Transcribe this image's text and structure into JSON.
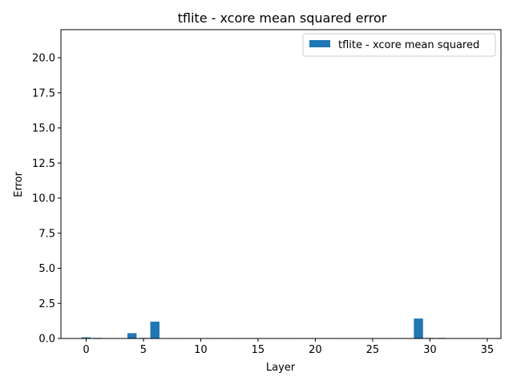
{
  "chart_data": {
    "type": "bar",
    "title": "tflite - xcore mean squared error",
    "xlabel": "Layer",
    "ylabel": "Error",
    "xlim": [
      -2.2,
      36.2
    ],
    "ylim": [
      0,
      22
    ],
    "xticks": [
      0,
      5,
      10,
      15,
      20,
      25,
      30,
      35
    ],
    "yticks": [
      0.0,
      2.5,
      5.0,
      7.5,
      10.0,
      12.5,
      15.0,
      17.5,
      20.0
    ],
    "grid": false,
    "legend_position": "top-right",
    "series": [
      {
        "name": "tflite - xcore mean squared",
        "color": "#1f77b4",
        "x": [
          0,
          1,
          4,
          5,
          6,
          9,
          10,
          12,
          14,
          15,
          19,
          20,
          21,
          25,
          27,
          28,
          29,
          30,
          31
        ],
        "values": [
          0.08,
          0.04,
          0.38,
          0.04,
          1.2,
          0.03,
          0.03,
          0.03,
          0.03,
          0.03,
          0.03,
          0.03,
          0.03,
          0.03,
          0.03,
          0.03,
          1.42,
          0.04,
          0.04
        ]
      }
    ]
  }
}
